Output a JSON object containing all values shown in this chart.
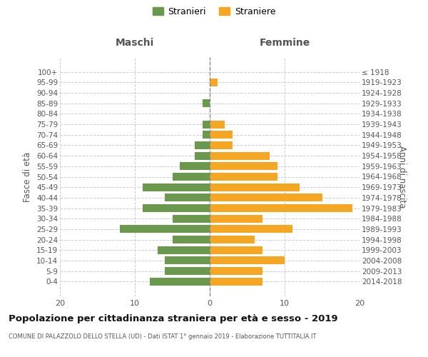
{
  "age_groups": [
    "100+",
    "95-99",
    "90-94",
    "85-89",
    "80-84",
    "75-79",
    "70-74",
    "65-69",
    "60-64",
    "55-59",
    "50-54",
    "45-49",
    "40-44",
    "35-39",
    "30-34",
    "25-29",
    "20-24",
    "15-19",
    "10-14",
    "5-9",
    "0-4"
  ],
  "birth_years": [
    "≤ 1918",
    "1919-1923",
    "1924-1928",
    "1929-1933",
    "1934-1938",
    "1939-1943",
    "1944-1948",
    "1949-1953",
    "1954-1958",
    "1959-1963",
    "1964-1968",
    "1969-1973",
    "1974-1978",
    "1979-1983",
    "1984-1988",
    "1989-1993",
    "1994-1998",
    "1999-2003",
    "2004-2008",
    "2009-2013",
    "2014-2018"
  ],
  "maschi": [
    0,
    0,
    0,
    1,
    0,
    1,
    1,
    2,
    2,
    4,
    5,
    9,
    6,
    9,
    5,
    12,
    5,
    7,
    6,
    6,
    8
  ],
  "femmine": [
    0,
    1,
    0,
    0,
    0,
    2,
    3,
    3,
    8,
    9,
    9,
    12,
    15,
    19,
    7,
    11,
    6,
    7,
    10,
    7,
    7
  ],
  "color_maschi": "#6a994e",
  "color_femmine": "#f5a623",
  "background_color": "#ffffff",
  "grid_color": "#cccccc",
  "title": "Popolazione per cittadinanza straniera per età e sesso - 2019",
  "subtitle": "COMUNE DI PALAZZOLO DELLO STELLA (UD) - Dati ISTAT 1° gennaio 2019 - Elaborazione TUTTITALIA.IT",
  "xlabel_left": "Maschi",
  "xlabel_right": "Femmine",
  "ylabel_left": "Fasce di età",
  "ylabel_right": "Anni di nascita",
  "xlim": 20,
  "legend_stranieri": "Stranieri",
  "legend_straniere": "Straniere"
}
